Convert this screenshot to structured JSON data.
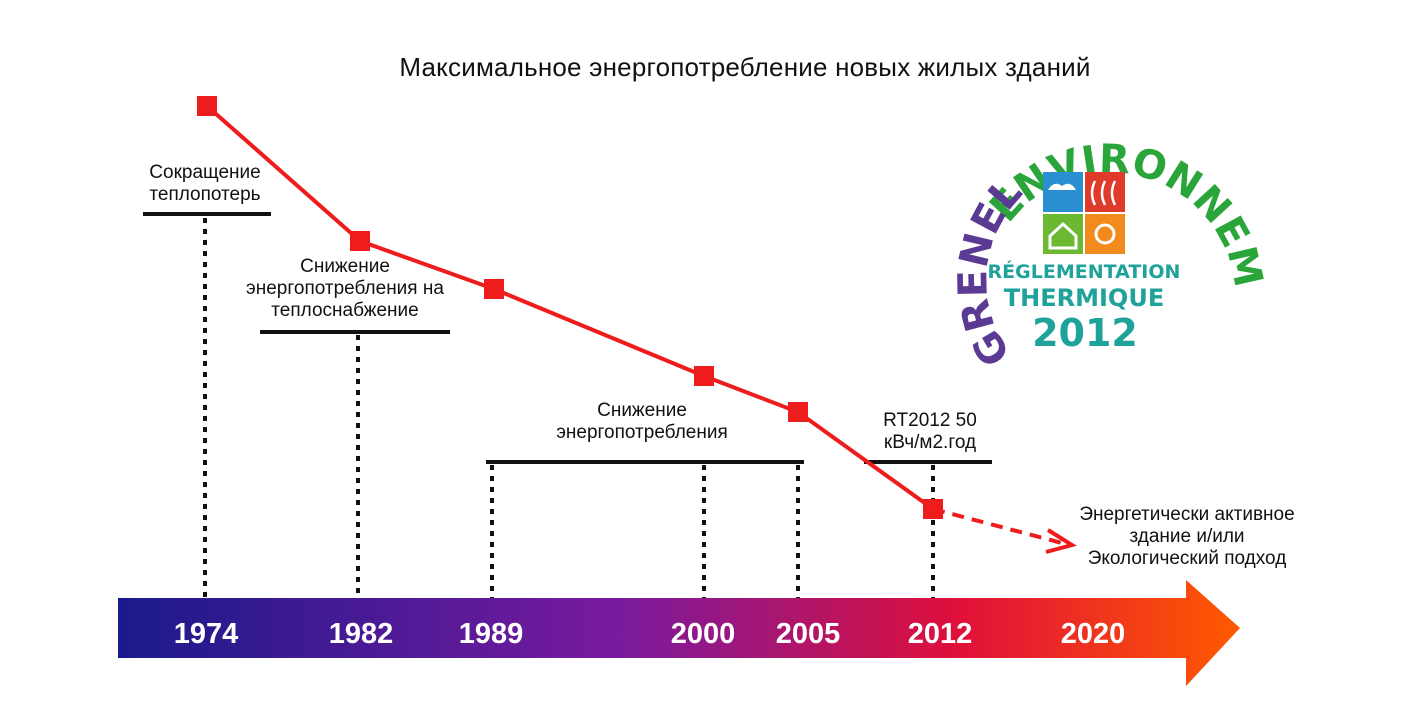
{
  "title": "Максимальное энергопотребление новых жилых зданий",
  "timeline": {
    "years": [
      "1974",
      "1982",
      "1989",
      "2000",
      "2005",
      "2012",
      "2020"
    ],
    "arrow_colors": [
      "#1a1a8c",
      "#7a1a9e",
      "#e0103a",
      "#ff5a00"
    ]
  },
  "consumption_points": [
    {
      "year": "1974"
    },
    {
      "year": "1982"
    },
    {
      "year": "1989"
    },
    {
      "year": "2000"
    },
    {
      "year": "2005"
    },
    {
      "year": "2012"
    }
  ],
  "line_color": "#ee1c1c",
  "annotations": {
    "a1974": [
      "Сокращение",
      "теплопотерь"
    ],
    "a1982": [
      "Снижение",
      "энергопотребления на",
      "теплоснабжение"
    ],
    "a1989": [
      "Снижение",
      "энергопотребления"
    ],
    "a2012": [
      "RT2012 50",
      "кВч/м2.год"
    ],
    "a2020": [
      "Энергетически активное",
      "здание  и/или",
      "Экологический подход"
    ]
  },
  "logo": {
    "arc_top": "ENVIRONNEMENT",
    "arc_left": "GRENELLE",
    "line1": "RÉGLEMENTATION",
    "line2": "THERMIQUE",
    "year": "2012",
    "colors": {
      "purple": "#5b3a93",
      "green": "#2aa53a",
      "teal": "#1fa29a",
      "blue": "#2a8fd1",
      "red": "#e03a2a",
      "lime": "#6cb833",
      "orange": "#f38a1d"
    }
  }
}
